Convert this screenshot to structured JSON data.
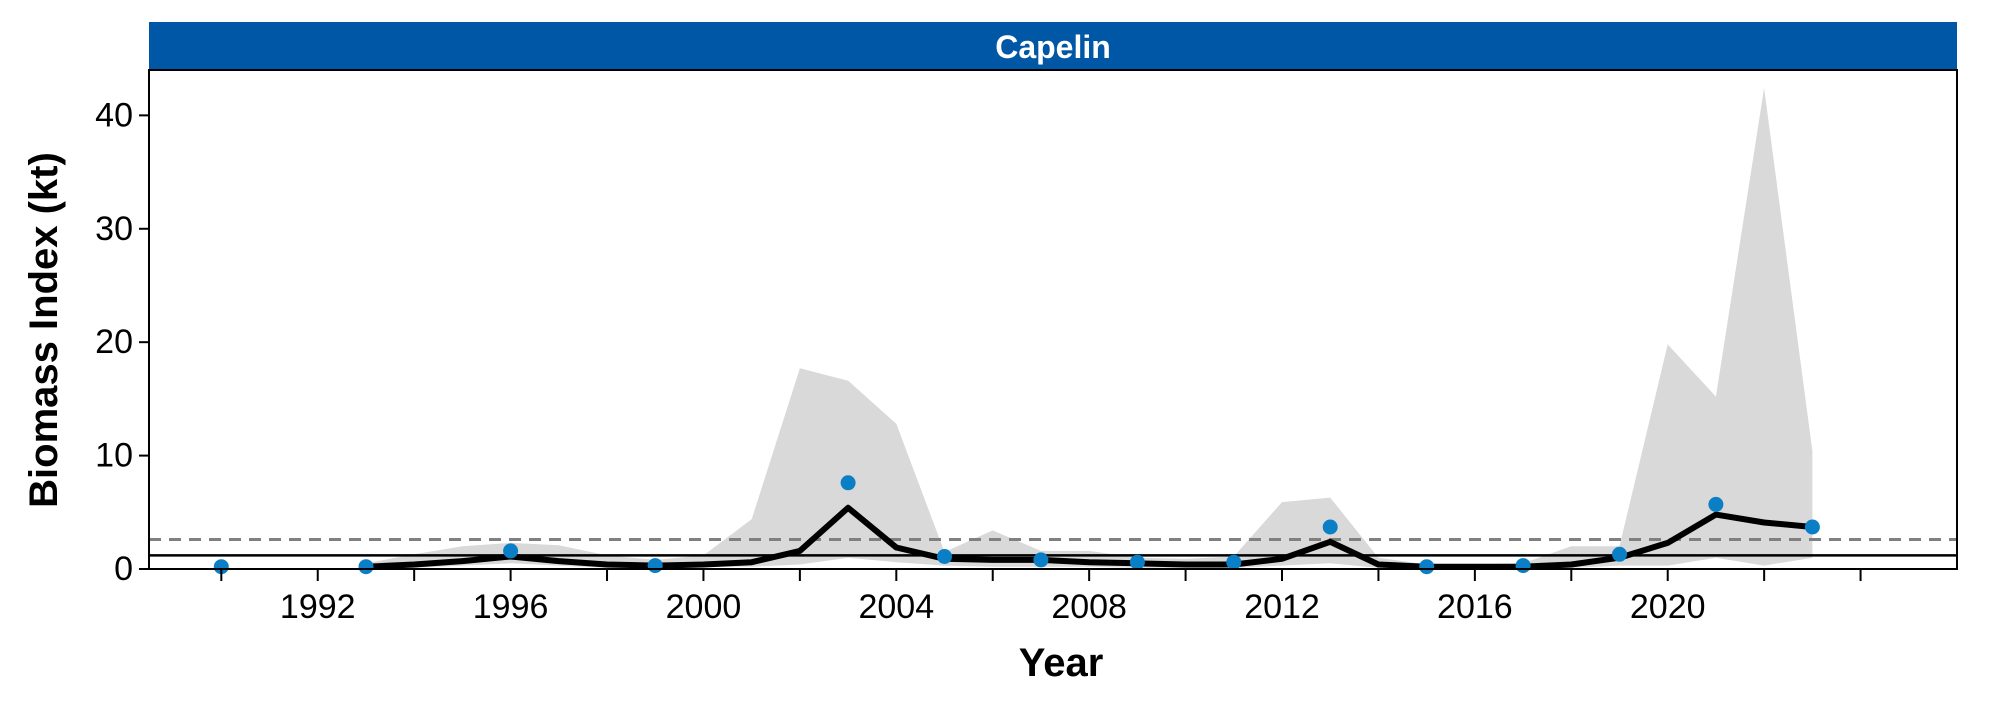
{
  "chart_data": {
    "type": "line",
    "title": "Capelin",
    "xlabel": "Year",
    "ylabel": "Biomass Index (kt)",
    "xlim": [
      1988.5,
      2026
    ],
    "ylim": [
      0,
      44
    ],
    "x_ticks": [
      1992,
      1996,
      2000,
      2004,
      2008,
      2012,
      2016,
      2020
    ],
    "x_minor_ticks": [
      1990,
      1994,
      1998,
      2002,
      2006,
      2010,
      2014,
      2018,
      2022,
      2024
    ],
    "y_ticks": [
      0,
      10,
      20,
      30,
      40
    ],
    "grid": false,
    "legend": "none",
    "reference_lines": [
      {
        "style": "dashed",
        "y": 2.6
      },
      {
        "style": "solid",
        "y": 1.2
      }
    ],
    "ribbon": {
      "x": [
        1993,
        1994,
        1995,
        1996,
        1997,
        1998,
        1999,
        2000,
        2001,
        2002,
        2003,
        2004,
        2005,
        2006,
        2007,
        2008,
        2009,
        2010,
        2011,
        2012,
        2013,
        2014,
        2015,
        2016,
        2017,
        2018,
        2019,
        2020,
        2021,
        2022,
        2023
      ],
      "lower": [
        0,
        0.1,
        0.3,
        0.5,
        0.3,
        0.1,
        0.1,
        0.2,
        0.2,
        0.4,
        1.0,
        0.6,
        0.3,
        0.2,
        0.2,
        0.2,
        0.1,
        0.1,
        0.1,
        0.3,
        0.5,
        0.1,
        0,
        0,
        0,
        0.1,
        0.3,
        0.3,
        1.0,
        0.3,
        1.0
      ],
      "upper": [
        0.5,
        1.3,
        2.0,
        2.3,
        2.1,
        1.2,
        0.8,
        1.2,
        4.4,
        17.7,
        16.6,
        12.8,
        1.5,
        3.4,
        1.6,
        1.6,
        1.0,
        0.9,
        1.1,
        5.9,
        6.3,
        1.0,
        0.4,
        0.4,
        0.5,
        2.0,
        2.0,
        19.8,
        15.2,
        42.4,
        10.4
      ]
    },
    "series": [
      {
        "type": "line",
        "color": "#000000",
        "x": [
          1993,
          1994,
          1995,
          1996,
          1997,
          1998,
          1999,
          2000,
          2001,
          2002,
          2003,
          2004,
          2005,
          2006,
          2007,
          2008,
          2009,
          2010,
          2011,
          2012,
          2013,
          2014,
          2015,
          2016,
          2017,
          2018,
          2019,
          2020,
          2021,
          2022,
          2023
        ],
        "y": [
          0.2,
          0.4,
          0.7,
          1.1,
          0.7,
          0.4,
          0.3,
          0.4,
          0.6,
          1.6,
          5.4,
          1.9,
          0.9,
          0.8,
          0.8,
          0.6,
          0.5,
          0.4,
          0.4,
          0.9,
          2.4,
          0.4,
          0.2,
          0.2,
          0.2,
          0.4,
          1.0,
          2.3,
          4.8,
          4.1,
          3.7
        ]
      },
      {
        "type": "scatter",
        "color": "#0B7FC6",
        "x": [
          1990,
          1993,
          1996,
          1999,
          2003,
          2005,
          2007,
          2009,
          2011,
          2013,
          2015,
          2017,
          2019,
          2021,
          2023
        ],
        "y": [
          0.2,
          0.2,
          1.6,
          0.3,
          7.6,
          1.1,
          0.8,
          0.6,
          0.6,
          3.7,
          0.2,
          0.3,
          1.3,
          5.7,
          3.7
        ]
      }
    ]
  },
  "colors": {
    "strip": "#0057A6",
    "ribbon": "#D9D9D9",
    "dashed_line": "#808080",
    "points": "#0B7FC6"
  }
}
